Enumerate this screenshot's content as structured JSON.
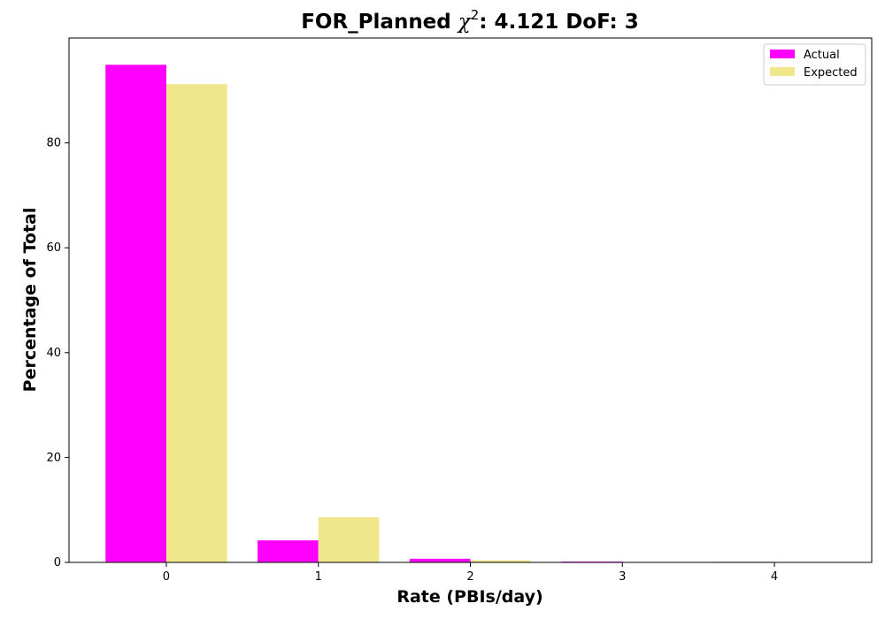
{
  "chart_data": {
    "type": "bar",
    "title": {
      "main": "FOR_Planned ",
      "chi": "χ",
      "sup": "2",
      "rest": ": 4.121 DoF: 3"
    },
    "xlabel": "Rate (PBIs/day)",
    "ylabel": "Percentage of Total",
    "categories": [
      "0",
      "1",
      "2",
      "3",
      "4"
    ],
    "x": [
      0,
      1,
      2,
      3,
      4
    ],
    "xlim": [
      -0.64,
      4.64
    ],
    "ylim": [
      0,
      100
    ],
    "yticks": [
      0,
      20,
      40,
      60,
      80
    ],
    "series": [
      {
        "name": "Actual",
        "color": "#ff00ff",
        "values": [
          94.9,
          4.2,
          0.7,
          0.15,
          0.1
        ]
      },
      {
        "name": "Expected",
        "color": "#f0e68c",
        "values": [
          91.2,
          8.6,
          0.4,
          0.03,
          0.0
        ]
      }
    ],
    "legend_position": "top-right",
    "grid": false
  }
}
